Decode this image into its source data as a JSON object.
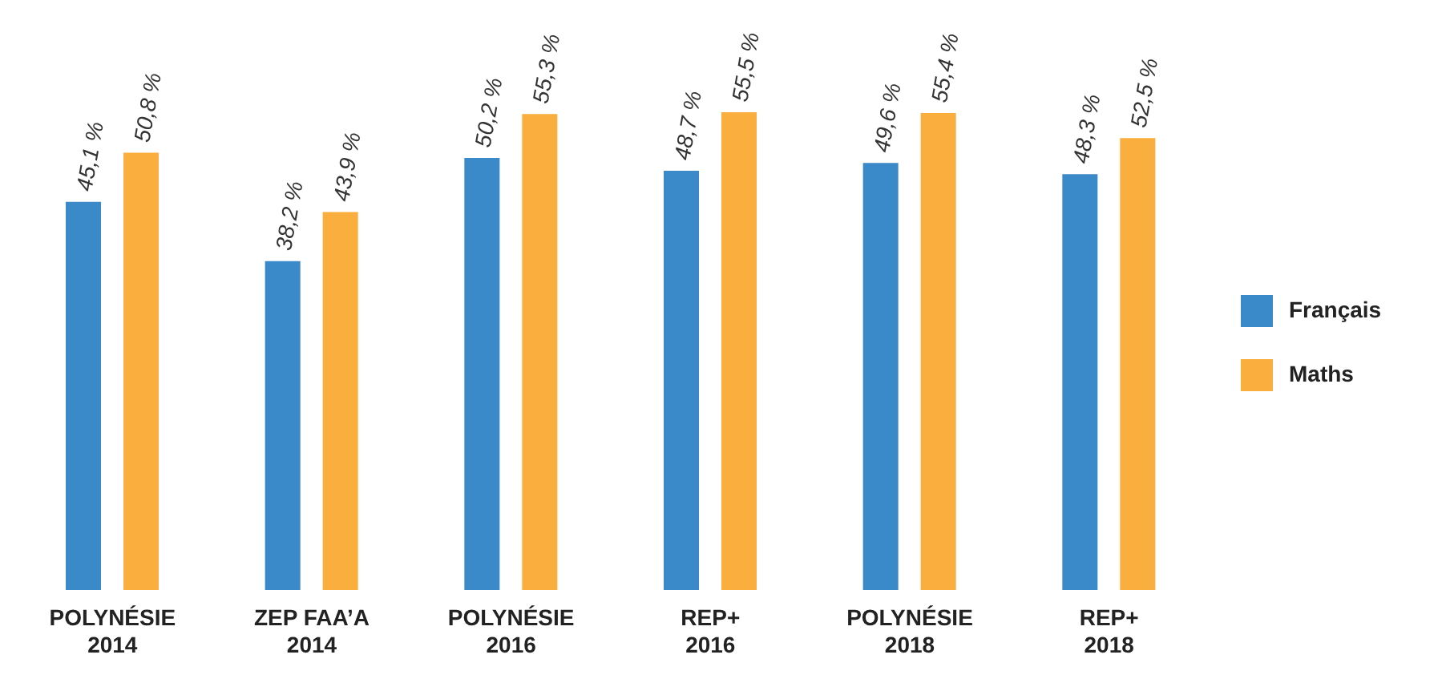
{
  "chart_data": {
    "type": "bar",
    "categories": [
      "POLYNÉSIE 2014",
      "ZEP FAA’A 2014",
      "POLYNÉSIE 2016",
      "REP+ 2016",
      "POLYNÉSIE 2018",
      "REP+ 2018"
    ],
    "series": [
      {
        "name": "Français",
        "color": "#3a89c9",
        "values": [
          45.1,
          38.2,
          50.2,
          48.7,
          49.6,
          48.3
        ],
        "value_labels": [
          "45,1 %",
          "38,2 %",
          "50,2 %",
          "48,7 %",
          "49,6 %",
          "48,3 %"
        ]
      },
      {
        "name": "Maths",
        "color": "#f9ae3d",
        "values": [
          50.8,
          43.9,
          55.3,
          55.5,
          55.4,
          52.5
        ],
        "value_labels": [
          "50,8 %",
          "43,9 %",
          "55,3 %",
          "55,5 %",
          "55,4 %",
          "52,5 %"
        ]
      }
    ],
    "relative": false,
    "grid": false,
    "legend": "right"
  }
}
